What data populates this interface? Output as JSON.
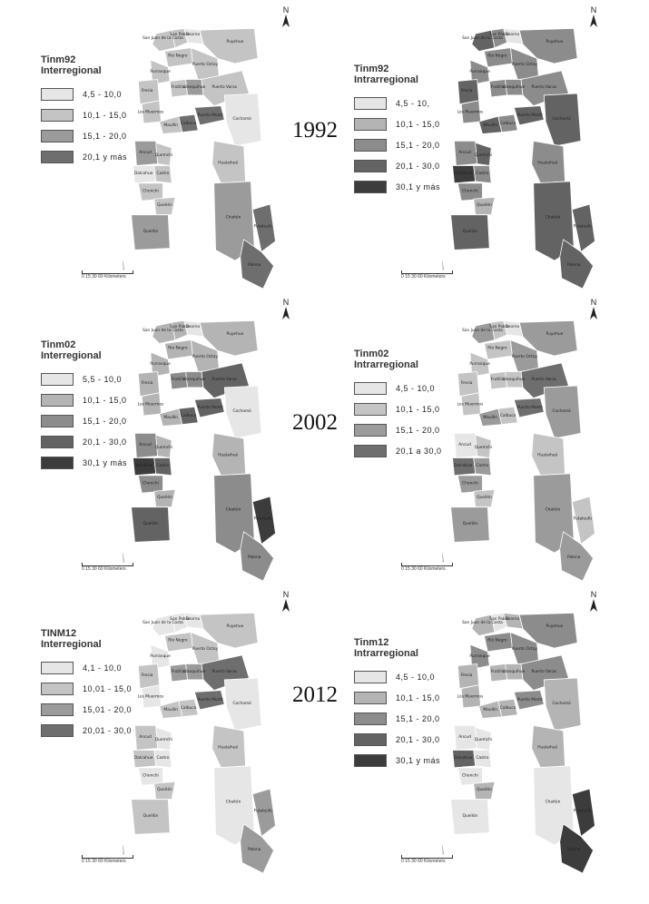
{
  "panels": [
    {
      "id": "p1992-inter",
      "col": 0,
      "row": 0,
      "title_line1": "Tinm92",
      "title_line2": "Interregional",
      "classes": [
        {
          "label": "4,5 - 10,0",
          "color": "#e6e6e6"
        },
        {
          "label": "10,1 - 15,0",
          "color": "#c4c4c4"
        },
        {
          "label": "15,1 - 20,0",
          "color": "#9b9b9b"
        },
        {
          "label": "20,1 y más",
          "color": "#6e6e6e"
        }
      ],
      "scale_label": "0   15   30        60 Kilometers"
    },
    {
      "id": "p1992-intra",
      "col": 1,
      "row": 0,
      "title_line1": "Tinm92",
      "title_line2": "Intrarregional",
      "classes": [
        {
          "label": "4,5 - 10,",
          "color": "#e6e6e6"
        },
        {
          "label": "10,1 - 15,0",
          "color": "#b4b4b4"
        },
        {
          "label": "15,1 - 20,0",
          "color": "#8c8c8c"
        },
        {
          "label": "20,1 - 30,0",
          "color": "#636363"
        },
        {
          "label": "30,1 y más",
          "color": "#3c3c3c"
        }
      ],
      "scale_label": "0   15   30        60 Kilometers"
    },
    {
      "id": "p2002-inter",
      "col": 0,
      "row": 1,
      "title_line1": "Tinm02",
      "title_line2": "Interregional",
      "classes": [
        {
          "label": "5,5 - 10,0",
          "color": "#e6e6e6"
        },
        {
          "label": "10,1 - 15,0",
          "color": "#b4b4b4"
        },
        {
          "label": "15,1 - 20,0",
          "color": "#8c8c8c"
        },
        {
          "label": "20,1 - 30,0",
          "color": "#636363"
        },
        {
          "label": "30,1 y más",
          "color": "#3c3c3c"
        }
      ],
      "scale_label": "0   15   30        60 Kilometers"
    },
    {
      "id": "p2002-intra",
      "col": 1,
      "row": 1,
      "title_line1": "Tinm02",
      "title_line2": "Intrarregional",
      "classes": [
        {
          "label": "4,5 - 10,0",
          "color": "#e6e6e6"
        },
        {
          "label": "10,1 - 15,0",
          "color": "#c4c4c4"
        },
        {
          "label": "15,1 - 20,0",
          "color": "#9b9b9b"
        },
        {
          "label": "20,1 a 30,0",
          "color": "#6e6e6e"
        }
      ],
      "scale_label": "0   15   30        60 Kilometers"
    },
    {
      "id": "p2012-inter",
      "col": 0,
      "row": 2,
      "title_line1": "TINM12",
      "title_line2": "Interregional",
      "classes": [
        {
          "label": "4,1 - 10,0",
          "color": "#e6e6e6"
        },
        {
          "label": "10,01 - 15,0",
          "color": "#c4c4c4"
        },
        {
          "label": "15,01 - 20,0",
          "color": "#9b9b9b"
        },
        {
          "label": "20,01 - 30,0",
          "color": "#6e6e6e"
        }
      ],
      "scale_label": "0   15   30        60 Kilometers"
    },
    {
      "id": "p2012-intra",
      "col": 1,
      "row": 2,
      "title_line1": "Tinm12",
      "title_line2": "Intrarregional",
      "classes": [
        {
          "label": "4,5 - 10,0",
          "color": "#e6e6e6"
        },
        {
          "label": "10,1 - 15,0",
          "color": "#b4b4b4"
        },
        {
          "label": "15,1 - 20,0",
          "color": "#8c8c8c"
        },
        {
          "label": "20,1 - 30,0",
          "color": "#636363"
        },
        {
          "label": "30,1 y más",
          "color": "#3c3c3c"
        }
      ],
      "scale_label": "0   15   30        60 Kilometers"
    }
  ],
  "years": [
    "1992",
    "2002",
    "2012"
  ],
  "north_symbol": "N",
  "municipality_labels": [
    "San Juan de la Costa",
    "San Pablo",
    "Osorno",
    "Puyehue",
    "Río Negro",
    "Purranque",
    "Puerto Octay",
    "Fresia",
    "Frutillar",
    "Llanquihue",
    "Puerto Varas",
    "Los Muermos",
    "Maullín",
    "Calbuco",
    "Puerto Montt",
    "Cochamó",
    "Ancud",
    "Quemchi",
    "Dalcahue",
    "Castro",
    "Chonchi",
    "Queilén",
    "Quellón",
    "Hualaihué",
    "Chaitén",
    "Futaleufú",
    "Palena"
  ],
  "class_index_by_panel": [
    [
      1,
      1,
      0,
      1,
      1,
      1,
      1,
      1,
      1,
      2,
      1,
      1,
      1,
      3,
      3,
      0,
      2,
      1,
      0,
      1,
      1,
      1,
      2,
      1,
      2,
      3,
      3
    ],
    [
      3,
      2,
      0,
      2,
      2,
      2,
      2,
      3,
      2,
      2,
      2,
      2,
      3,
      2,
      3,
      3,
      2,
      3,
      4,
      2,
      2,
      1,
      3,
      2,
      3,
      3,
      3
    ],
    [
      1,
      1,
      0,
      1,
      1,
      1,
      1,
      1,
      2,
      2,
      3,
      1,
      1,
      3,
      3,
      0,
      2,
      1,
      4,
      3,
      2,
      1,
      3,
      1,
      2,
      4,
      2
    ],
    [
      2,
      1,
      0,
      2,
      1,
      1,
      2,
      1,
      1,
      1,
      3,
      1,
      2,
      1,
      3,
      2,
      0,
      1,
      3,
      2,
      2,
      1,
      2,
      1,
      2,
      1,
      2
    ],
    [
      0,
      0,
      0,
      1,
      1,
      0,
      1,
      1,
      2,
      2,
      3,
      0,
      1,
      1,
      3,
      0,
      1,
      0,
      1,
      0,
      0,
      1,
      1,
      1,
      0,
      2,
      2
    ],
    [
      1,
      0,
      1,
      2,
      2,
      2,
      2,
      1,
      1,
      1,
      2,
      1,
      1,
      1,
      2,
      1,
      0,
      0,
      3,
      0,
      0,
      1,
      0,
      1,
      0,
      4,
      4
    ]
  ]
}
